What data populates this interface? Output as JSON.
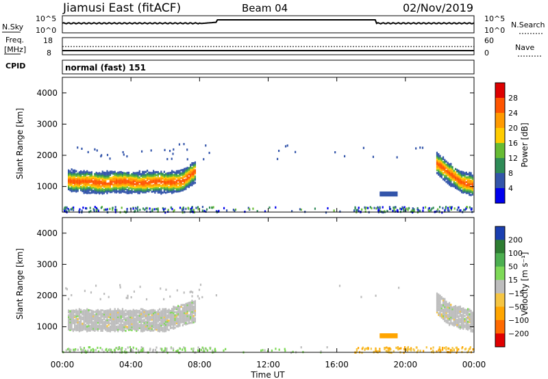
{
  "header": {
    "title": "Jiamusi East (fitACF)",
    "beam": "Beam 04",
    "date": "02/Nov/2019"
  },
  "panel_nsky": {
    "left_label": "N.Sky",
    "right_label": "N.Search",
    "left_ticks": [
      "10^5",
      "10^0"
    ],
    "right_ticks": [
      "10^5",
      "10^0"
    ]
  },
  "panel_freq": {
    "left_label_line1": "Freq.",
    "left_label_line2": "[MHz]",
    "left_ticks": [
      "18",
      "8"
    ],
    "right_label": "Nave",
    "right_ticks": [
      "60",
      "0"
    ],
    "cpid_label": "CPID"
  },
  "cpid_text": "normal (fast) 151",
  "power_colorbar": {
    "label": "Power [dB]",
    "ticks": [
      "28",
      "24",
      "20",
      "16",
      "12",
      "8",
      "4"
    ],
    "colors": [
      "#dd0000",
      "#ff5500",
      "#ff9a00",
      "#ffcc00",
      "#66bb33",
      "#2e8b57",
      "#3355aa",
      "#0000ee"
    ]
  },
  "velocity_colorbar": {
    "label": "Velocity [m s⁻¹]",
    "ticks": [
      "200",
      "100",
      "50",
      "15",
      "−15",
      "−50",
      "−100",
      "−200"
    ],
    "colors": [
      "#1a3fb0",
      "#2e7d32",
      "#4caf50",
      "#7ed957",
      "#bdbdbd",
      "#f5c542",
      "#ffa500",
      "#ff6a00",
      "#e00000"
    ]
  },
  "axes": {
    "ylabel": "Slant Range [km]",
    "xlabel": "Time UT",
    "yticks": [
      "4000",
      "3000",
      "2000",
      "1000"
    ],
    "xticks": [
      "00:00",
      "04:00",
      "08:00",
      "12:00",
      "16:00",
      "20:00",
      "00:00"
    ]
  },
  "chart_data": [
    {
      "type": "heatmap",
      "name": "Power",
      "x_range_hours": [
        0,
        24
      ],
      "ylim_km": [
        180,
        4500
      ],
      "main_echo_band_km": [
        {
          "x": 0.3,
          "y": 1250
        },
        {
          "x": 1.0,
          "y": 1200
        },
        {
          "x": 2.0,
          "y": 1150
        },
        {
          "x": 3.0,
          "y": 1200
        },
        {
          "x": 4.0,
          "y": 1150
        },
        {
          "x": 5.0,
          "y": 1200
        },
        {
          "x": 6.0,
          "y": 1150
        },
        {
          "x": 7.0,
          "y": 1250
        },
        {
          "x": 7.7,
          "y": 1500
        }
      ],
      "late_echo_band_km": [
        {
          "x": 21.8,
          "y": 1800
        },
        {
          "x": 22.5,
          "y": 1450
        },
        {
          "x": 23.2,
          "y": 1200
        },
        {
          "x": 23.9,
          "y": 1100
        }
      ],
      "patch_km": {
        "x": [
          18.5,
          19.5
        ],
        "y": [
          750,
          850
        ]
      }
    },
    {
      "type": "heatmap",
      "name": "Velocity",
      "x_range_hours": [
        0,
        24
      ],
      "ylim_km": [
        180,
        4500
      ],
      "main_echo_band_km": [
        {
          "x": 0.3,
          "y": 1250
        },
        {
          "x": 2.0,
          "y": 1250
        },
        {
          "x": 4.0,
          "y": 1250
        },
        {
          "x": 6.0,
          "y": 1250
        },
        {
          "x": 7.7,
          "y": 1550
        }
      ],
      "late_echo_band_km": [
        {
          "x": 21.8,
          "y": 1800
        },
        {
          "x": 22.5,
          "y": 1450
        },
        {
          "x": 23.9,
          "y": 1200
        }
      ],
      "patch_km": {
        "x": [
          18.5,
          19.5
        ],
        "y": [
          700,
          800
        ]
      }
    }
  ]
}
